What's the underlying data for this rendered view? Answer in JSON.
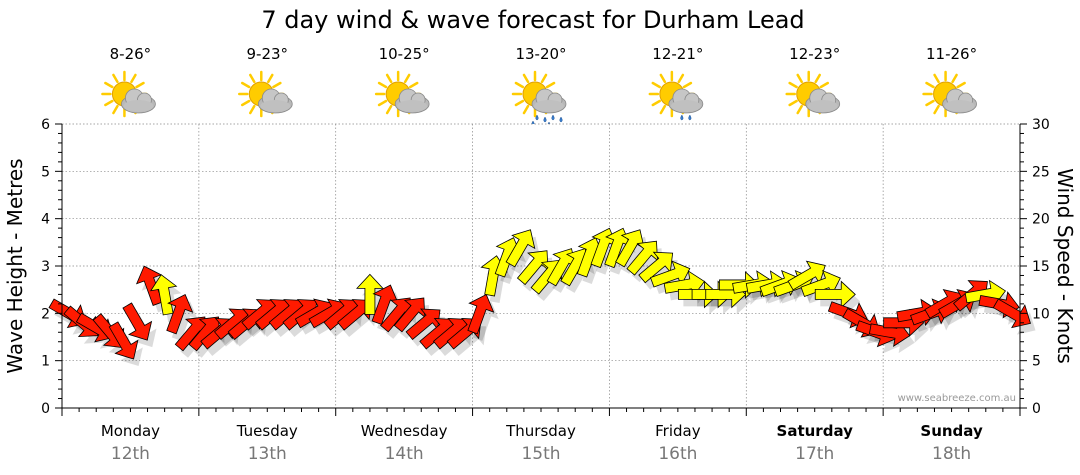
{
  "chart_data": {
    "type": "scatter",
    "title": "7 day wind & wave forecast for Durham Lead",
    "ylabel_left": "Wave Height - Metres",
    "ylabel_right": "Wind Speed - Knots",
    "ylim_left": [
      0,
      6
    ],
    "ylim_right": [
      0,
      30
    ],
    "yticks_left": [
      "0",
      "1",
      "2",
      "3",
      "4",
      "5",
      "6"
    ],
    "yticks_right": [
      "0",
      "5",
      "10",
      "15",
      "20",
      "25",
      "30"
    ],
    "grid": true,
    "credit": "www.seabreeze.com.au",
    "days": [
      {
        "name": "Monday",
        "date": "12th",
        "temp": "8-26°",
        "icon": "partly-cloudy-icon",
        "bold": false
      },
      {
        "name": "Tuesday",
        "date": "13th",
        "temp": "9-23°",
        "icon": "partly-cloudy-icon",
        "bold": false
      },
      {
        "name": "Wednesday",
        "date": "14th",
        "temp": "10-25°",
        "icon": "partly-cloudy-icon",
        "bold": false
      },
      {
        "name": "Thursday",
        "date": "15th",
        "temp": "13-20°",
        "icon": "showers-icon",
        "bold": false
      },
      {
        "name": "Friday",
        "date": "16th",
        "temp": "12-21°",
        "icon": "light-rain-icon",
        "bold": false
      },
      {
        "name": "Saturday",
        "date": "17th",
        "temp": "12-23°",
        "icon": "partly-cloudy-icon",
        "bold": true
      },
      {
        "name": "Sunday",
        "date": "18th",
        "temp": "11-26°",
        "icon": "partly-cloudy-icon",
        "bold": true
      }
    ],
    "colors": {
      "red": "#ff1a00",
      "yellow": "#ffff00",
      "outline": "#000000",
      "grid": "#888888",
      "sun": "#ffcc00",
      "cloud": "#b8b8b8"
    },
    "series": [
      {
        "name": "Wind Speed - Knots",
        "x_days": [
          0.05,
          0.15,
          0.25,
          0.35,
          0.45,
          0.55,
          0.65,
          0.75,
          0.85,
          0.95,
          1.05,
          1.15,
          1.25,
          1.35,
          1.45,
          1.55,
          1.65,
          1.75,
          1.85,
          1.95,
          2.05,
          2.15,
          2.25,
          2.35,
          2.45,
          2.55,
          2.65,
          2.75,
          2.85,
          2.95,
          3.05,
          3.15,
          3.25,
          3.35,
          3.45,
          3.55,
          3.65,
          3.75,
          3.85,
          3.95,
          4.05,
          4.15,
          4.25,
          4.35,
          4.45,
          4.55,
          4.65,
          4.75,
          4.85,
          4.95,
          5.05,
          5.15,
          5.25,
          5.35,
          5.45,
          5.55,
          5.65,
          5.75,
          5.85,
          5.95,
          6.05,
          6.15,
          6.25,
          6.35,
          6.45,
          6.55,
          6.65,
          6.75,
          6.85,
          6.95
        ],
        "knots": [
          10,
          9,
          8.5,
          8,
          7,
          9,
          13,
          12,
          10,
          8,
          8,
          8,
          9,
          9,
          10,
          10,
          10,
          10,
          10,
          10,
          10,
          10,
          12,
          11,
          10,
          10,
          9,
          8,
          8,
          8,
          10,
          14,
          16,
          17,
          15,
          14,
          15,
          15,
          16,
          17,
          17,
          17,
          16,
          15,
          14,
          13,
          12,
          12,
          12,
          13,
          13,
          13,
          13,
          13,
          14,
          13,
          12,
          10,
          9,
          8,
          8,
          9,
          10,
          10,
          11,
          11,
          12,
          12,
          11,
          10
        ],
        "wind_from_deg": [
          300,
          310,
          300,
          320,
          330,
          330,
          160,
          170,
          200,
          220,
          220,
          230,
          230,
          230,
          230,
          230,
          230,
          230,
          240,
          240,
          230,
          230,
          180,
          200,
          220,
          220,
          230,
          230,
          230,
          230,
          200,
          190,
          200,
          210,
          220,
          220,
          210,
          210,
          200,
          200,
          200,
          210,
          220,
          230,
          250,
          260,
          270,
          270,
          270,
          270,
          260,
          260,
          250,
          250,
          240,
          250,
          270,
          290,
          300,
          290,
          280,
          270,
          260,
          250,
          240,
          240,
          230,
          260,
          280,
          300
        ],
        "color": [
          "red",
          "red",
          "red",
          "red",
          "red",
          "red",
          "red",
          "yellow",
          "red",
          "red",
          "red",
          "red",
          "red",
          "red",
          "red",
          "red",
          "red",
          "red",
          "red",
          "red",
          "red",
          "red",
          "yellow",
          "red",
          "red",
          "red",
          "red",
          "red",
          "red",
          "red",
          "red",
          "yellow",
          "yellow",
          "yellow",
          "yellow",
          "yellow",
          "yellow",
          "yellow",
          "yellow",
          "yellow",
          "yellow",
          "yellow",
          "yellow",
          "yellow",
          "yellow",
          "yellow",
          "yellow",
          "yellow",
          "yellow",
          "yellow",
          "yellow",
          "yellow",
          "yellow",
          "yellow",
          "yellow",
          "yellow",
          "yellow",
          "red",
          "red",
          "red",
          "red",
          "red",
          "red",
          "red",
          "red",
          "red",
          "red",
          "yellow",
          "red",
          "red"
        ]
      }
    ]
  }
}
